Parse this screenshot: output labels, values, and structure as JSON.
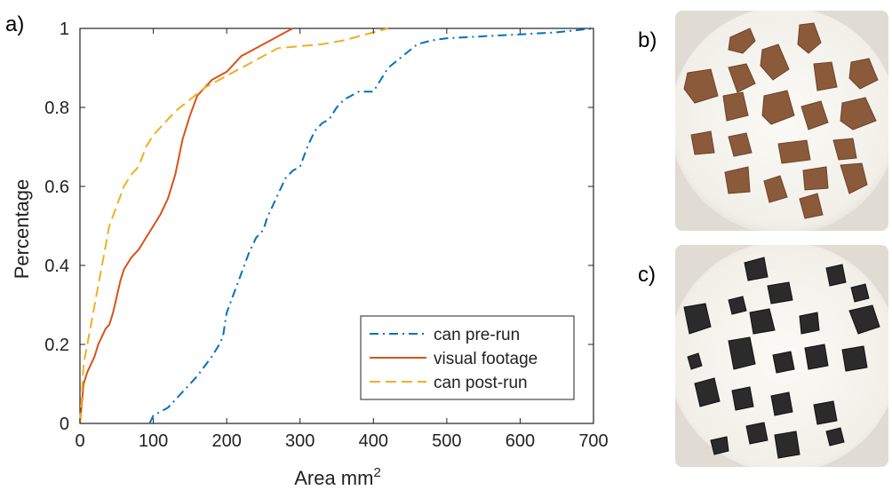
{
  "panels": {
    "a_label": "a)",
    "b_label": "b)",
    "c_label": "c)"
  },
  "chart_data": {
    "type": "line",
    "title": "",
    "xlabel": "Area mm",
    "xlabel_superscript": "2",
    "ylabel": "Percentage",
    "xlim": [
      0,
      700
    ],
    "ylim": [
      0,
      1
    ],
    "xticks": [
      0,
      100,
      200,
      300,
      400,
      500,
      600,
      700
    ],
    "yticks": [
      0,
      0.2,
      0.4,
      0.6,
      0.8,
      1
    ],
    "grid": false,
    "legend_position": "bottom-right",
    "series": [
      {
        "name": "can pre-run",
        "style": "dashdot",
        "color": "#0072BD",
        "points": [
          [
            95,
            0
          ],
          [
            100,
            0.02
          ],
          [
            120,
            0.04
          ],
          [
            140,
            0.08
          ],
          [
            160,
            0.12
          ],
          [
            180,
            0.17
          ],
          [
            190,
            0.2
          ],
          [
            195,
            0.22
          ],
          [
            200,
            0.28
          ],
          [
            210,
            0.33
          ],
          [
            220,
            0.38
          ],
          [
            230,
            0.43
          ],
          [
            240,
            0.47
          ],
          [
            250,
            0.49
          ],
          [
            255,
            0.52
          ],
          [
            260,
            0.54
          ],
          [
            270,
            0.58
          ],
          [
            280,
            0.62
          ],
          [
            290,
            0.64
          ],
          [
            300,
            0.65
          ],
          [
            310,
            0.7
          ],
          [
            320,
            0.74
          ],
          [
            330,
            0.76
          ],
          [
            340,
            0.77
          ],
          [
            350,
            0.8
          ],
          [
            360,
            0.82
          ],
          [
            370,
            0.83
          ],
          [
            380,
            0.84
          ],
          [
            400,
            0.84
          ],
          [
            410,
            0.87
          ],
          [
            420,
            0.9
          ],
          [
            440,
            0.93
          ],
          [
            460,
            0.96
          ],
          [
            480,
            0.97
          ],
          [
            500,
            0.975
          ],
          [
            550,
            0.98
          ],
          [
            600,
            0.985
          ],
          [
            650,
            0.99
          ],
          [
            700,
            1.0
          ]
        ]
      },
      {
        "name": "visual footage",
        "style": "solid",
        "color": "#D95319",
        "points": [
          [
            0,
            0
          ],
          [
            5,
            0.1
          ],
          [
            10,
            0.13
          ],
          [
            15,
            0.15
          ],
          [
            20,
            0.17
          ],
          [
            25,
            0.2
          ],
          [
            30,
            0.22
          ],
          [
            35,
            0.24
          ],
          [
            40,
            0.25
          ],
          [
            45,
            0.28
          ],
          [
            50,
            0.32
          ],
          [
            55,
            0.36
          ],
          [
            60,
            0.39
          ],
          [
            70,
            0.42
          ],
          [
            80,
            0.44
          ],
          [
            90,
            0.47
          ],
          [
            100,
            0.5
          ],
          [
            110,
            0.53
          ],
          [
            120,
            0.57
          ],
          [
            130,
            0.63
          ],
          [
            140,
            0.72
          ],
          [
            150,
            0.78
          ],
          [
            160,
            0.83
          ],
          [
            170,
            0.85
          ],
          [
            180,
            0.87
          ],
          [
            190,
            0.88
          ],
          [
            200,
            0.89
          ],
          [
            210,
            0.91
          ],
          [
            220,
            0.93
          ],
          [
            230,
            0.94
          ],
          [
            240,
            0.95
          ],
          [
            250,
            0.96
          ],
          [
            260,
            0.97
          ],
          [
            270,
            0.98
          ],
          [
            280,
            0.99
          ],
          [
            290,
            1.0
          ]
        ]
      },
      {
        "name": "can post-run",
        "style": "dashed",
        "color": "#EDB120",
        "points": [
          [
            0,
            0
          ],
          [
            5,
            0.15
          ],
          [
            10,
            0.2
          ],
          [
            15,
            0.25
          ],
          [
            20,
            0.3
          ],
          [
            25,
            0.35
          ],
          [
            30,
            0.4
          ],
          [
            35,
            0.45
          ],
          [
            40,
            0.5
          ],
          [
            50,
            0.55
          ],
          [
            60,
            0.6
          ],
          [
            70,
            0.63
          ],
          [
            80,
            0.65
          ],
          [
            90,
            0.7
          ],
          [
            100,
            0.73
          ],
          [
            110,
            0.75
          ],
          [
            130,
            0.79
          ],
          [
            150,
            0.82
          ],
          [
            170,
            0.85
          ],
          [
            190,
            0.87
          ],
          [
            210,
            0.89
          ],
          [
            230,
            0.91
          ],
          [
            250,
            0.93
          ],
          [
            270,
            0.95
          ],
          [
            300,
            0.955
          ],
          [
            330,
            0.96
          ],
          [
            360,
            0.97
          ],
          [
            380,
            0.98
          ],
          [
            400,
            0.99
          ],
          [
            420,
            1.0
          ]
        ]
      }
    ]
  }
}
